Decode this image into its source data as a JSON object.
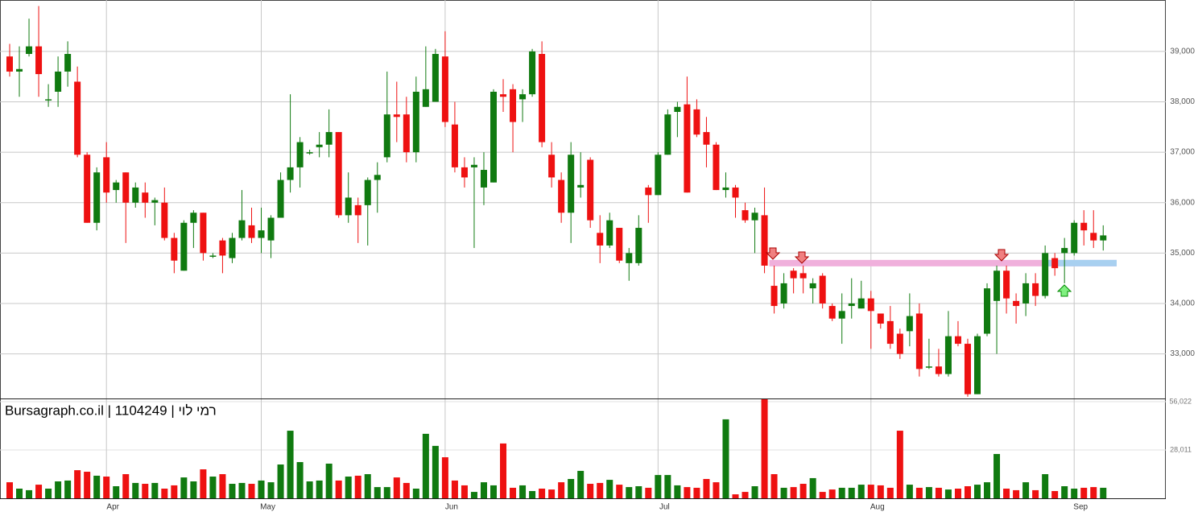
{
  "chart_data": {
    "type": "candlestick",
    "title": "Bursagraph.co.il | 1104249 | רמי לוי",
    "categories": [
      null,
      null,
      null,
      null,
      null,
      null,
      null,
      null,
      null,
      null,
      "Apr",
      null,
      null,
      null,
      null,
      null,
      null,
      null,
      null,
      null,
      null,
      null,
      null,
      null,
      null,
      null,
      "May",
      null,
      null,
      null,
      null,
      null,
      null,
      null,
      null,
      null,
      null,
      null,
      null,
      null,
      null,
      null,
      null,
      null,
      null,
      "Jun",
      null,
      null,
      null,
      null,
      null,
      null,
      null,
      null,
      null,
      null,
      null,
      null,
      null,
      null,
      null,
      null,
      null,
      null,
      null,
      null,
      null,
      "Jul",
      null,
      null,
      null,
      null,
      null,
      null,
      null,
      null,
      null,
      null,
      null,
      null,
      null,
      null,
      null,
      null,
      null,
      null,
      null,
      null,
      null,
      "Aug",
      null,
      null,
      null,
      null,
      null,
      null,
      null,
      null,
      null,
      null,
      null,
      null,
      null,
      null,
      null,
      null,
      null,
      null,
      null,
      null,
      "Sep",
      null,
      null,
      null
    ],
    "open": [
      38900,
      38600,
      38950,
      39100,
      38050,
      38200,
      38600,
      38400,
      36950,
      35600,
      36900,
      36250,
      36600,
      36000,
      36200,
      36000,
      36000,
      35300,
      34650,
      35600,
      35800,
      34950,
      35250,
      34900,
      35300,
      35550,
      35300,
      35250,
      35700,
      36450,
      36700,
      37000,
      37100,
      37150,
      37400,
      35750,
      35950,
      35950,
      36450,
      36900,
      37750,
      37750,
      37000,
      37900,
      38000,
      38900,
      37550,
      36700,
      36700,
      36300,
      36400,
      38150,
      38250,
      38050,
      38150,
      38950,
      36950,
      36450,
      35800,
      36300,
      36850,
      35400,
      35150,
      35500,
      34800,
      34800,
      36300,
      36150,
      36950,
      37800,
      37950,
      37850,
      37400,
      37150,
      36250,
      36300,
      35850,
      35650,
      35750,
      34350,
      34000,
      34650,
      34600,
      34300,
      34550,
      33950,
      33700,
      33950,
      33900,
      34100,
      33800,
      33650,
      33400,
      33450,
      33800,
      32750,
      32750,
      32600,
      33350,
      33200,
      32200,
      33400,
      34050,
      34650,
      34050,
      34000,
      34400,
      34150,
      34900,
      35000,
      35000,
      35600,
      35400,
      35250
    ],
    "high": [
      39150,
      39100,
      39650,
      39900,
      38350,
      38900,
      39200,
      38700,
      37000,
      36700,
      37200,
      36450,
      36600,
      36400,
      36400,
      36100,
      36300,
      35400,
      35650,
      35850,
      35800,
      35000,
      35300,
      35400,
      36250,
      35900,
      35900,
      35750,
      36600,
      38150,
      37300,
      37050,
      37400,
      37850,
      37400,
      36600,
      36100,
      36500,
      36800,
      38600,
      38400,
      38100,
      38500,
      39100,
      39050,
      39400,
      38000,
      36900,
      36900,
      37000,
      38250,
      38450,
      38350,
      38250,
      39050,
      39200,
      37200,
      36600,
      37200,
      37000,
      36900,
      35750,
      35800,
      35500,
      35100,
      35750,
      36350,
      37000,
      37850,
      38000,
      38500,
      38050,
      37700,
      37200,
      36600,
      36350,
      36000,
      35900,
      36300,
      34750,
      34600,
      34700,
      34750,
      34500,
      34600,
      34000,
      34200,
      34500,
      34450,
      34250,
      33800,
      33950,
      33500,
      34200,
      34000,
      33300,
      33100,
      33850,
      33650,
      33300,
      33400,
      34400,
      34750,
      34750,
      34200,
      34600,
      34600,
      35150,
      35000,
      35300,
      35650,
      35850,
      35850,
      35550
    ],
    "low": [
      38500,
      38100,
      38900,
      38100,
      37900,
      37900,
      38300,
      36900,
      35600,
      35450,
      36000,
      36000,
      35200,
      35900,
      35700,
      35550,
      35250,
      34600,
      34650,
      35100,
      34850,
      34900,
      34600,
      34800,
      35250,
      35200,
      35000,
      34900,
      35700,
      36200,
      36300,
      36950,
      36900,
      36900,
      35700,
      35600,
      35200,
      35150,
      35800,
      36800,
      37200,
      36800,
      36800,
      37900,
      38000,
      37500,
      36600,
      36300,
      35100,
      35950,
      36400,
      37800,
      37000,
      37600,
      38100,
      37100,
      36300,
      35600,
      35200,
      36100,
      35500,
      34800,
      35100,
      34800,
      34450,
      34750,
      35600,
      36150,
      36950,
      37300,
      36200,
      37300,
      36700,
      36250,
      36100,
      35700,
      35600,
      35000,
      34600,
      33800,
      33900,
      34200,
      34200,
      34000,
      33900,
      33650,
      33200,
      33700,
      33900,
      33100,
      33500,
      33100,
      32900,
      33150,
      32550,
      32700,
      32550,
      32550,
      33150,
      32150,
      32200,
      33350,
      33000,
      33800,
      33600,
      33750,
      33950,
      34100,
      34550,
      34400,
      34950,
      35150,
      35100,
      35050
    ],
    "close": [
      38600,
      38650,
      39100,
      38550,
      38050,
      38600,
      38950,
      36950,
      35600,
      36600,
      36200,
      36400,
      36000,
      36300,
      36000,
      36050,
      35300,
      34850,
      35600,
      35800,
      35000,
      34950,
      34950,
      35300,
      35650,
      35300,
      35450,
      35700,
      36450,
      36700,
      37200,
      37000,
      37150,
      37400,
      35750,
      36100,
      35750,
      36450,
      36550,
      37750,
      37700,
      37000,
      38200,
      38250,
      38950,
      37600,
      36700,
      36500,
      36750,
      36650,
      38200,
      38100,
      37600,
      38150,
      39000,
      37200,
      36500,
      35800,
      36950,
      36350,
      35650,
      35150,
      35650,
      34850,
      35000,
      35500,
      36150,
      36950,
      37750,
      37900,
      36200,
      37350,
      37150,
      36250,
      36300,
      36100,
      35650,
      35800,
      34750,
      33950,
      34400,
      34500,
      34500,
      34400,
      34000,
      33700,
      33850,
      34000,
      34100,
      33850,
      33600,
      33200,
      33000,
      33750,
      32700,
      32750,
      32600,
      33350,
      33200,
      32200,
      33350,
      34300,
      34650,
      34100,
      33950,
      34400,
      34150,
      35000,
      34700,
      35100,
      35600,
      35450,
      35250,
      35350
    ],
    "volume": [
      9300,
      5600,
      4700,
      7900,
      5600,
      9800,
      10300,
      16300,
      15400,
      13100,
      12600,
      7000,
      14000,
      8900,
      8400,
      8900,
      5600,
      7500,
      12100,
      9800,
      16800,
      12600,
      14000,
      8400,
      8900,
      8400,
      10300,
      9300,
      19600,
      39200,
      21000,
      9800,
      10300,
      20100,
      10300,
      12600,
      13100,
      14000,
      6500,
      6500,
      12100,
      8900,
      5600,
      37400,
      30400,
      23800,
      10300,
      7500,
      3700,
      9300,
      7500,
      31800,
      6100,
      7500,
      4200,
      5600,
      5100,
      9300,
      11200,
      15900,
      8400,
      8900,
      10700,
      7900,
      6500,
      7000,
      6100,
      13500,
      13500,
      7500,
      6500,
      6100,
      11200,
      9300,
      45800,
      2300,
      3700,
      7000,
      57900,
      14000,
      6100,
      6500,
      8400,
      11700,
      3700,
      5100,
      6100,
      6100,
      7900,
      7900,
      7500,
      6100,
      39200,
      7900,
      6100,
      6500,
      6100,
      5100,
      5600,
      7000,
      7900,
      9300,
      25700,
      5600,
      4700,
      9300,
      4700,
      14000,
      4200,
      7000,
      5600,
      6100,
      6500,
      6100
    ],
    "up_color": "#107a10",
    "down_color": "#ee1111",
    "ylim": [
      32115,
      40020
    ],
    "yticks": [
      {
        "value": 33000,
        "label": "33,000"
      },
      {
        "value": 34000,
        "label": "34,000"
      },
      {
        "value": 35000,
        "label": "35,000"
      },
      {
        "value": 36000,
        "label": "36,000"
      },
      {
        "value": 37000,
        "label": "37,000"
      },
      {
        "value": 38000,
        "label": "38,000"
      },
      {
        "value": 39000,
        "label": "39,000"
      }
    ],
    "volume_ylim": [
      0,
      57900
    ],
    "volume_yticks": [
      {
        "value": 28011,
        "label": "28,011"
      },
      {
        "value": 56022,
        "label": "56,022"
      }
    ],
    "level": 34800,
    "level_color": "#f0b0dc",
    "level_color_2": "#a8d0f0",
    "grid": true
  }
}
